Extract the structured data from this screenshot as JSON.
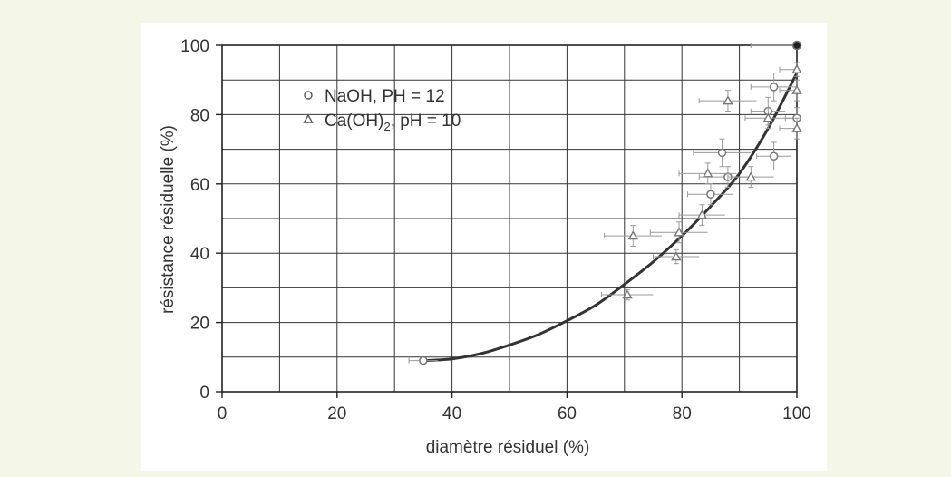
{
  "chart_data": {
    "type": "scatter",
    "title": "",
    "xlabel": "diamètre résiduel (%)",
    "ylabel": "résistance résiduelle (%)",
    "xlim": [
      0,
      100
    ],
    "ylim": [
      0,
      100
    ],
    "xticks": [
      "0",
      "20",
      "40",
      "60",
      "80",
      "100"
    ],
    "yticks": [
      "0",
      "20",
      "40",
      "60",
      "80",
      "100"
    ],
    "grid": true,
    "legend_position": "top-left",
    "series": [
      {
        "name": "NaOH, PH = 12",
        "marker": "circle",
        "points": [
          {
            "x": 35,
            "y": 9,
            "xerr": 2.5,
            "yerr": 0.6
          },
          {
            "x": 85,
            "y": 57,
            "xerr": 4,
            "yerr": 3
          },
          {
            "x": 87,
            "y": 69,
            "xerr": 5,
            "yerr": 4
          },
          {
            "x": 88,
            "y": 62,
            "xerr": 5,
            "yerr": 3
          },
          {
            "x": 95,
            "y": 81,
            "xerr": 3,
            "yerr": 4
          },
          {
            "x": 96,
            "y": 68,
            "xerr": 3,
            "yerr": 4
          },
          {
            "x": 96,
            "y": 88,
            "xerr": 4,
            "yerr": 4
          },
          {
            "x": 100,
            "y": 79,
            "xerr": 2,
            "yerr": 3
          },
          {
            "x": 100,
            "y": 100,
            "xerr": 8,
            "yerr": 0
          }
        ]
      },
      {
        "name": "Ca(OH)₂, pH = 10",
        "marker": "triangle",
        "points": [
          {
            "x": 70.5,
            "y": 28,
            "xerr": 4.5,
            "yerr": 1.5
          },
          {
            "x": 71.5,
            "y": 45,
            "xerr": 5,
            "yerr": 3
          },
          {
            "x": 79,
            "y": 39,
            "xerr": 4,
            "yerr": 2
          },
          {
            "x": 79.5,
            "y": 46,
            "xerr": 5,
            "yerr": 3
          },
          {
            "x": 83.5,
            "y": 51,
            "xerr": 4,
            "yerr": 3
          },
          {
            "x": 84.5,
            "y": 63,
            "xerr": 5,
            "yerr": 3
          },
          {
            "x": 88,
            "y": 84,
            "xerr": 5,
            "yerr": 3
          },
          {
            "x": 92,
            "y": 62,
            "xerr": 4,
            "yerr": 3
          },
          {
            "x": 95,
            "y": 79,
            "xerr": 4,
            "yerr": 3
          },
          {
            "x": 100,
            "y": 76,
            "xerr": 3,
            "yerr": 3
          },
          {
            "x": 100,
            "y": 87,
            "xerr": 3,
            "yerr": 3
          },
          {
            "x": 100,
            "y": 93,
            "xerr": 3,
            "yerr": 2
          }
        ]
      }
    ],
    "fit_curve": {
      "points": [
        [
          35,
          9
        ],
        [
          40,
          9.5
        ],
        [
          45,
          11
        ],
        [
          50,
          13.5
        ],
        [
          55,
          16.5
        ],
        [
          60,
          20.5
        ],
        [
          65,
          25
        ],
        [
          70,
          31
        ],
        [
          75,
          37.5
        ],
        [
          80,
          45
        ],
        [
          85,
          53.5
        ],
        [
          90,
          63
        ],
        [
          95,
          76
        ],
        [
          100,
          92
        ]
      ]
    }
  },
  "legend": {
    "naoh_label": "NaOH, PH = 12",
    "caoh_prefix": "Ca(OH)",
    "caoh_sub": "2",
    "caoh_suffix": ", pH = 10"
  },
  "colors": {
    "background": "#f4f7e7",
    "panel": "#ffffff",
    "axis": "#222222",
    "markers": "#777777",
    "errorbars": "#999999",
    "curve": "#333333"
  }
}
